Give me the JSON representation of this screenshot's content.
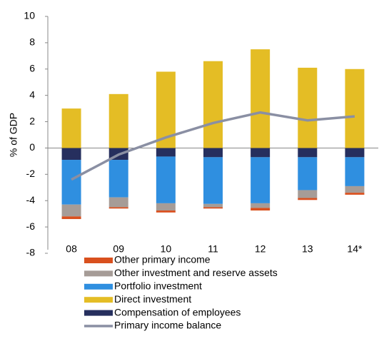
{
  "chart_data": {
    "type": "stacked-bar-line",
    "y_label": "% of GDP",
    "categories": [
      "08",
      "09",
      "10",
      "11",
      "12",
      "13",
      "14*"
    ],
    "ylim": [
      -8,
      10
    ],
    "yticks": [
      -8,
      -6,
      -4,
      -2,
      0,
      2,
      4,
      6,
      8,
      10
    ],
    "series": [
      {
        "name": "Compensation of employees",
        "color": "#262f5e",
        "type": "bar",
        "values": [
          -0.9,
          -0.9,
          -0.65,
          -0.7,
          -0.7,
          -0.7,
          -0.7
        ]
      },
      {
        "name": "Direct investment",
        "color": "#e4bd25",
        "type": "bar",
        "values": [
          3.0,
          4.1,
          5.8,
          6.6,
          7.5,
          6.1,
          6.0
        ]
      },
      {
        "name": "Portfolio investment",
        "color": "#2f8fe0",
        "type": "bar",
        "values": [
          -3.4,
          -2.85,
          -3.55,
          -3.55,
          -3.5,
          -2.5,
          -2.2
        ]
      },
      {
        "name": "Other investment and reserve assets",
        "color": "#a69c97",
        "type": "bar",
        "values": [
          -0.9,
          -0.75,
          -0.55,
          -0.25,
          -0.35,
          -0.6,
          -0.5
        ]
      },
      {
        "name": "Other primary income",
        "color": "#d9501e",
        "type": "bar",
        "values": [
          -0.2,
          -0.1,
          -0.15,
          -0.1,
          -0.2,
          -0.15,
          -0.15
        ]
      },
      {
        "name": "Primary income balance",
        "color": "#8a8fa3",
        "type": "line",
        "values": [
          -2.4,
          -0.5,
          0.8,
          1.9,
          2.7,
          2.1,
          2.4
        ]
      }
    ]
  }
}
